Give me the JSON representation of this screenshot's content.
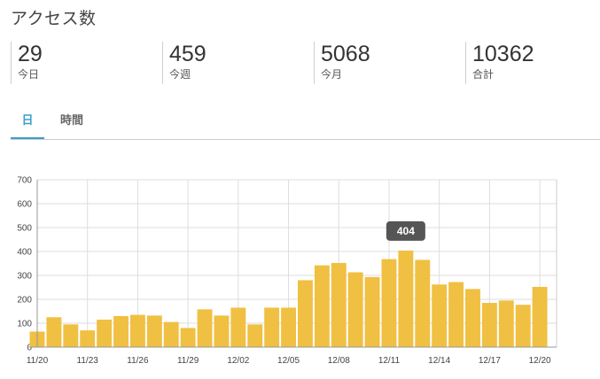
{
  "title": "アクセス数",
  "stats": [
    {
      "value": "29",
      "label": "今日"
    },
    {
      "value": "459",
      "label": "今週"
    },
    {
      "value": "5068",
      "label": "今月"
    },
    {
      "value": "10362",
      "label": "合計"
    }
  ],
  "tabs": [
    {
      "label": "日",
      "active": true
    },
    {
      "label": "時間",
      "active": false
    }
  ],
  "colors": {
    "bar": "#f0c042",
    "tab_active": "#3a9fc9",
    "tooltip_bg": "#555555"
  },
  "chart_data": {
    "type": "bar",
    "ylim": [
      0,
      700
    ],
    "yticks": [
      0,
      100,
      200,
      300,
      400,
      500,
      600,
      700
    ],
    "xtick_labels": [
      "11/20",
      "11/23",
      "11/26",
      "11/29",
      "12/02",
      "12/05",
      "12/08",
      "12/11",
      "12/14",
      "12/17",
      "12/20"
    ],
    "values": [
      65,
      125,
      95,
      70,
      115,
      130,
      135,
      132,
      105,
      80,
      158,
      132,
      165,
      95,
      165,
      165,
      280,
      342,
      352,
      313,
      293,
      368,
      404,
      365,
      262,
      272,
      243,
      185,
      195,
      177,
      252
    ],
    "tooltip": {
      "index": 22,
      "text": "404"
    },
    "grid": true
  }
}
